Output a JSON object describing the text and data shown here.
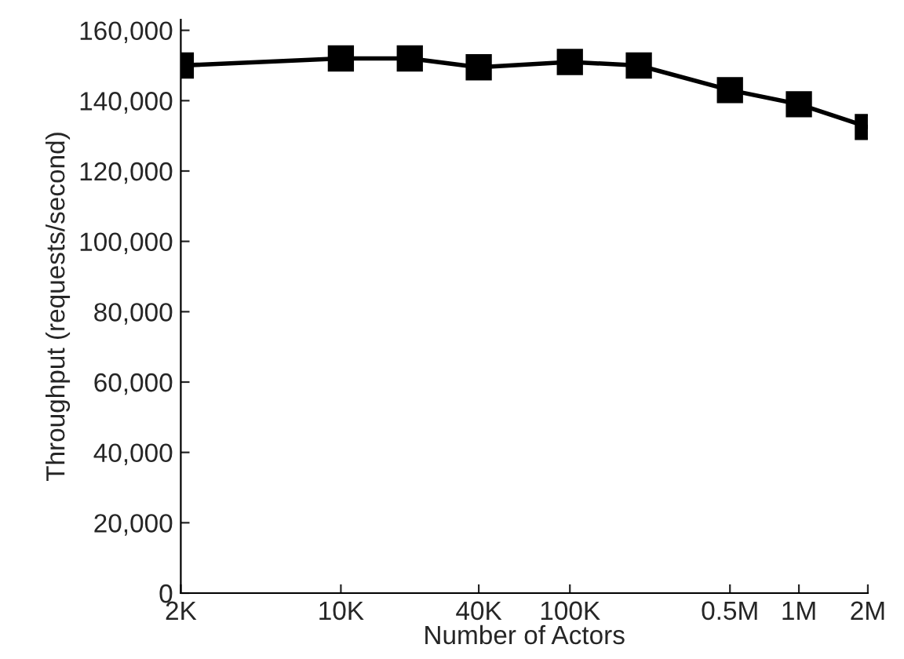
{
  "chart_data": {
    "type": "line",
    "xlabel": "Number of Actors",
    "ylabel": "Throughput (requests/second)",
    "x": [
      2000,
      10000,
      20000,
      40000,
      100000,
      200000,
      500000,
      1000000,
      2000000
    ],
    "series": [
      {
        "color": "#000000",
        "values": [
          150000,
          152000,
          152000,
          149500,
          151000,
          150000,
          143000,
          139000,
          132500
        ]
      }
    ],
    "log": "x",
    "marker": "square",
    "line_style": "solid",
    "grid": false,
    "legend": false,
    "xlim": [
      2000,
      2000000
    ],
    "xticks": [
      {
        "value": 2000,
        "label": "2K"
      },
      {
        "value": 10000,
        "label": "10K"
      },
      {
        "value": 40000,
        "label": "40K"
      },
      {
        "value": 100000,
        "label": "100K"
      },
      {
        "value": 500000,
        "label": "0.5M"
      },
      {
        "value": 1000000,
        "label": "1M"
      },
      {
        "value": 2000000,
        "label": "2M"
      }
    ],
    "ylim": [
      0,
      163000
    ],
    "yticks": [
      {
        "value": 0,
        "label": "0"
      },
      {
        "value": 20000,
        "label": "20,000"
      },
      {
        "value": 40000,
        "label": "40,000"
      },
      {
        "value": 60000,
        "label": "60,000"
      },
      {
        "value": 80000,
        "label": "80,000"
      },
      {
        "value": 100000,
        "label": "100,000"
      },
      {
        "value": 120000,
        "label": "120,000"
      },
      {
        "value": 140000,
        "label": "140,000"
      },
      {
        "value": 160000,
        "label": "160,000"
      }
    ]
  }
}
